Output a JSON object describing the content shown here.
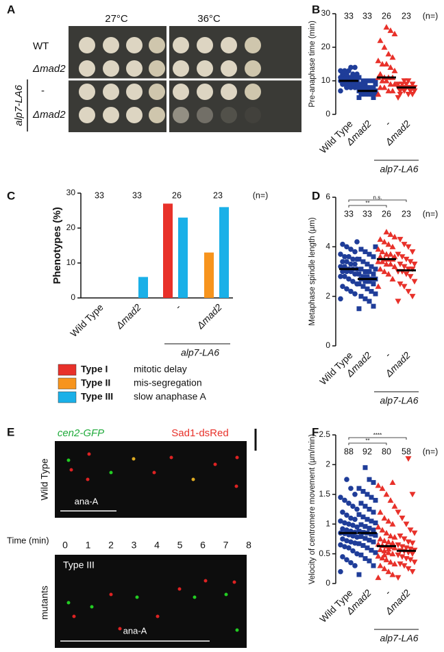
{
  "panel_labels": [
    "A",
    "B",
    "C",
    "D",
    "E",
    "F"
  ],
  "plate": {
    "temperatures": [
      "27°C",
      "36°C"
    ],
    "rows": [
      "WT",
      "Δmad2",
      "-",
      "Δmad2"
    ],
    "group": "alp7-LA6"
  },
  "microscopy": {
    "channels": [
      "cen2-GFP",
      "Sad1-dsRed"
    ],
    "top_label": "Wild Type",
    "top_bar_label": "ana-A",
    "time_label": "Time (min)",
    "times": [
      0,
      1,
      2,
      3,
      4,
      5,
      6,
      7,
      8
    ],
    "bottom_phenotype": "Type III",
    "bottom_label": "mutants",
    "bottom_bar_label": "ana-A"
  },
  "chart_data": [
    {
      "type": "dotplot",
      "y_label": "Pre-anaphase time (min)",
      "categories": [
        "Wild Type",
        "Δmad2",
        "-",
        "Δmad2"
      ],
      "group_label": "alp7-LA6",
      "n_labels": [
        33,
        33,
        26,
        23
      ],
      "n_header": "(n=)",
      "ylim": [
        0,
        30
      ],
      "yticks": [
        0,
        10,
        20,
        30
      ],
      "groups": [
        {
          "color": "#1f3d99",
          "marker": "circle",
          "median": 10,
          "values": [
            7,
            8,
            8,
            8,
            9,
            9,
            9,
            9,
            9,
            10,
            10,
            10,
            10,
            10,
            10,
            10,
            11,
            11,
            11,
            11,
            11,
            12,
            12,
            12,
            12,
            13,
            13,
            13,
            14,
            14,
            8,
            9,
            10
          ]
        },
        {
          "color": "#1f3d99",
          "marker": "square",
          "median": 7,
          "values": [
            5,
            5,
            6,
            6,
            6,
            6,
            6,
            7,
            7,
            7,
            7,
            7,
            7,
            7,
            7,
            7,
            8,
            8,
            8,
            8,
            8,
            9,
            9,
            9,
            10,
            10,
            10,
            11,
            6,
            7,
            8,
            9,
            10
          ]
        },
        {
          "color": "#e8312a",
          "marker": "triangle-up",
          "median": 11,
          "values": [
            6,
            7,
            7,
            8,
            8,
            9,
            9,
            10,
            10,
            11,
            11,
            11,
            11,
            12,
            13,
            14,
            15,
            15,
            16,
            17,
            18,
            20,
            22,
            24,
            25,
            26
          ]
        },
        {
          "color": "#e8312a",
          "marker": "triangle-down",
          "median": 8,
          "values": [
            5,
            6,
            6,
            7,
            7,
            7,
            7,
            8,
            8,
            8,
            8,
            8,
            8,
            8,
            8,
            8,
            9,
            9,
            9,
            9,
            10,
            10,
            6
          ]
        }
      ]
    },
    {
      "type": "bar",
      "y_label": "Phenotypes (%)",
      "categories": [
        "Wild Type",
        "Δmad2",
        "-",
        "Δmad2"
      ],
      "group_label": "alp7-LA6",
      "n_labels": [
        33,
        33,
        26,
        23
      ],
      "n_header": "(n=)",
      "ylim": [
        0,
        30
      ],
      "yticks": [
        0,
        10,
        20,
        30
      ],
      "series": [
        {
          "name": "Type I",
          "description": "mitotic delay",
          "color": "#e8312a",
          "values": [
            0,
            0,
            27,
            0
          ]
        },
        {
          "name": "Type II",
          "description": "mis-segregation",
          "color": "#f7941d",
          "values": [
            0,
            0,
            0,
            13
          ]
        },
        {
          "name": "Type III",
          "description": "slow anaphase A",
          "color": "#1ab0e8",
          "values": [
            0,
            6,
            23,
            26
          ]
        }
      ]
    },
    {
      "type": "dotplot",
      "y_label": "Metaphase spindle length (µm)",
      "categories": [
        "Wild Type",
        "Δmad2",
        "-",
        "Δmad2"
      ],
      "group_label": "alp7-LA6",
      "n_labels": [
        33,
        33,
        26,
        23
      ],
      "n_header": "(n=)",
      "ylim": [
        0,
        6
      ],
      "yticks": [
        0,
        2,
        4,
        6
      ],
      "significance": [
        "**",
        "n.s."
      ],
      "groups": [
        {
          "color": "#1f3d99",
          "marker": "circle",
          "median": 3.1,
          "values": [
            1.9,
            2.1,
            2.2,
            2.3,
            2.4,
            2.5,
            2.6,
            2.7,
            2.8,
            2.8,
            2.9,
            3.0,
            3.0,
            3.0,
            3.1,
            3.1,
            3.1,
            3.2,
            3.2,
            3.3,
            3.3,
            3.4,
            3.4,
            3.5,
            3.5,
            3.6,
            3.6,
            3.7,
            3.8,
            3.9,
            4.0,
            4.1,
            4.2
          ]
        },
        {
          "color": "#1f3d99",
          "marker": "square",
          "median": 2.7,
          "values": [
            1.5,
            1.6,
            1.8,
            1.9,
            2.0,
            2.1,
            2.2,
            2.3,
            2.4,
            2.5,
            2.5,
            2.6,
            2.6,
            2.7,
            2.7,
            2.7,
            2.8,
            2.8,
            2.9,
            2.9,
            3.0,
            3.0,
            3.1,
            3.1,
            3.2,
            3.3,
            3.4,
            3.5,
            3.6,
            3.7,
            3.8,
            3.9,
            4.0
          ]
        },
        {
          "color": "#e8312a",
          "marker": "triangle-up",
          "median": 3.5,
          "values": [
            2.4,
            2.7,
            2.9,
            3.0,
            3.1,
            3.2,
            3.3,
            3.3,
            3.4,
            3.4,
            3.5,
            3.5,
            3.5,
            3.6,
            3.6,
            3.7,
            3.7,
            3.8,
            3.9,
            4.0,
            4.1,
            4.2,
            4.3,
            4.4,
            4.5,
            4.6
          ]
        },
        {
          "color": "#e8312a",
          "marker": "triangle-down",
          "median": 3.05,
          "values": [
            1.8,
            2.0,
            2.2,
            2.4,
            2.5,
            2.6,
            2.8,
            2.9,
            3.0,
            3.0,
            3.1,
            3.1,
            3.2,
            3.3,
            3.3,
            3.4,
            3.5,
            3.6,
            3.7,
            3.8,
            4.0,
            4.1,
            4.3
          ]
        }
      ]
    },
    {
      "type": "dotplot",
      "y_label": "Velocity of centromere movement (µm/min)",
      "categories": [
        "Wild Type",
        "Δmad2",
        "-",
        "Δmad2"
      ],
      "group_label": "alp7-LA6",
      "n_labels": [
        88,
        92,
        80,
        58
      ],
      "n_header": "(n=)",
      "ylim": [
        0,
        2.5
      ],
      "yticks": [
        0,
        0.5,
        1,
        1.5,
        2,
        2.5
      ],
      "significance": [
        "**",
        "****"
      ],
      "groups": [
        {
          "color": "#1f3d99",
          "marker": "circle",
          "median": 0.85,
          "values": [
            0.2,
            0.3,
            0.35,
            0.4,
            0.45,
            0.5,
            0.55,
            0.6,
            0.62,
            0.65,
            0.68,
            0.7,
            0.72,
            0.75,
            0.78,
            0.8,
            0.82,
            0.84,
            0.85,
            0.86,
            0.88,
            0.9,
            0.92,
            0.95,
            0.98,
            1.0,
            1.02,
            1.05,
            1.08,
            1.1,
            1.15,
            1.2,
            1.25,
            1.3,
            1.35,
            1.4,
            1.45,
            1.5,
            1.6,
            1.75
          ]
        },
        {
          "color": "#1f3d99",
          "marker": "square",
          "median": 0.85,
          "values": [
            0.15,
            0.3,
            0.38,
            0.42,
            0.48,
            0.52,
            0.56,
            0.6,
            0.64,
            0.67,
            0.7,
            0.73,
            0.76,
            0.79,
            0.81,
            0.83,
            0.85,
            0.86,
            0.88,
            0.9,
            0.93,
            0.96,
            0.99,
            1.02,
            1.05,
            1.08,
            1.12,
            1.16,
            1.2,
            1.25,
            1.3,
            1.35,
            1.4,
            1.45,
            1.5,
            1.55,
            1.6,
            1.7,
            1.75,
            1.95
          ]
        },
        {
          "color": "#e8312a",
          "marker": "triangle-up",
          "median": 0.63,
          "values": [
            0.1,
            0.15,
            0.2,
            0.25,
            0.3,
            0.33,
            0.36,
            0.4,
            0.43,
            0.46,
            0.5,
            0.52,
            0.55,
            0.57,
            0.6,
            0.62,
            0.63,
            0.64,
            0.66,
            0.68,
            0.7,
            0.72,
            0.75,
            0.78,
            0.8,
            0.85,
            0.9,
            0.95,
            1.0,
            1.05,
            1.1,
            1.2,
            1.3,
            1.4,
            1.5,
            1.6,
            1.65,
            1.7,
            0.58,
            0.48
          ]
        },
        {
          "color": "#e8312a",
          "marker": "triangle-down",
          "median": 0.55,
          "values": [
            0.1,
            0.2,
            0.25,
            0.3,
            0.33,
            0.36,
            0.4,
            0.42,
            0.45,
            0.48,
            0.5,
            0.52,
            0.54,
            0.55,
            0.56,
            0.58,
            0.6,
            0.62,
            0.65,
            0.68,
            0.7,
            0.75,
            0.8,
            0.85,
            0.9,
            1.0,
            1.1,
            1.2,
            1.5,
            2.1
          ]
        }
      ]
    }
  ]
}
